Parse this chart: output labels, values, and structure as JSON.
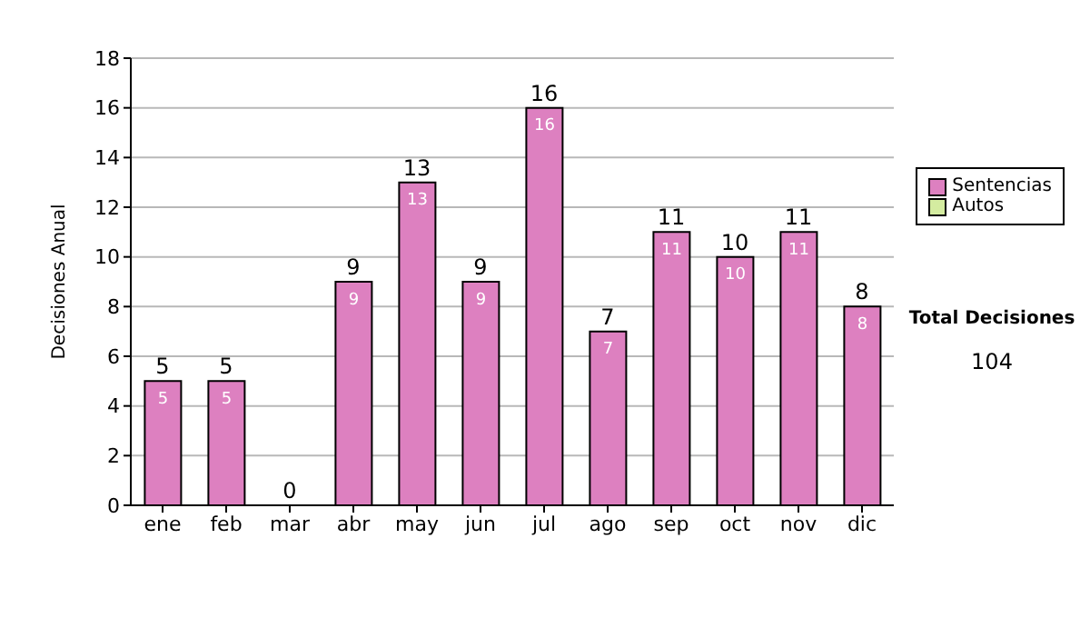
{
  "chart_data": {
    "type": "bar",
    "stacked": true,
    "ylabel": "Decisiones Anual",
    "categories": [
      "ene",
      "feb",
      "mar",
      "abr",
      "may",
      "jun",
      "jul",
      "ago",
      "sep",
      "oct",
      "nov",
      "dic"
    ],
    "series": [
      {
        "name": "Sentencias",
        "color": "#dd80c0",
        "values": [
          5,
          5,
          0,
          9,
          13,
          9,
          16,
          7,
          11,
          10,
          11,
          8
        ],
        "value_labels": [
          "5",
          "5",
          null,
          "9",
          "13",
          "9",
          "16",
          "7",
          "11",
          "10",
          "11",
          "8"
        ]
      },
      {
        "name": "Autos",
        "color": "#d4eca0",
        "values": [
          null,
          null,
          null,
          null,
          null,
          null,
          null,
          null,
          null,
          null,
          null,
          null
        ]
      }
    ],
    "totals": [
      "5",
      "5",
      "0",
      "9",
      "13",
      "9",
      "16",
      "7",
      "11",
      "10",
      "11",
      "8"
    ],
    "ylim": [
      0,
      18
    ],
    "yticks": [
      0,
      2,
      4,
      6,
      8,
      10,
      12,
      14,
      16,
      18
    ],
    "grid": "y",
    "legend": "right",
    "annotations": [
      "Total Decisiones",
      "104"
    ]
  }
}
